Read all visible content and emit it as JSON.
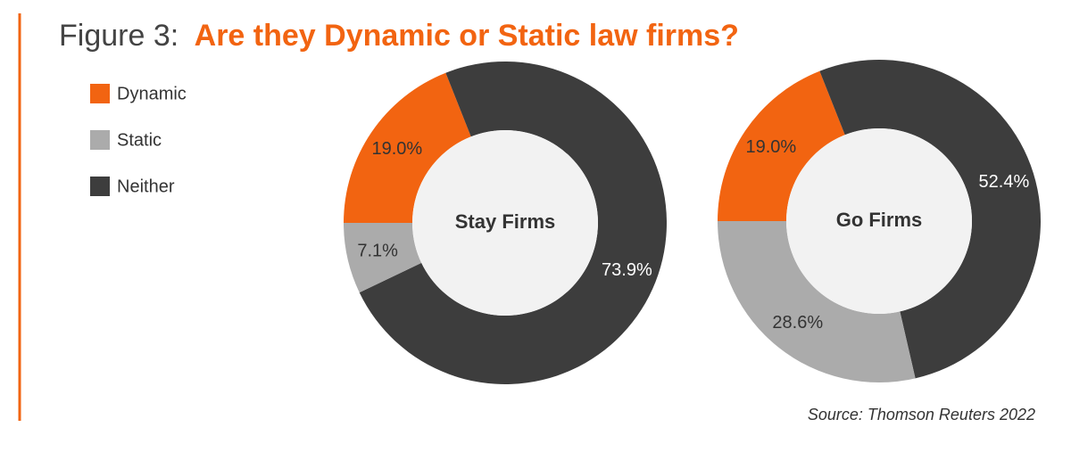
{
  "figure_label": "Figure 3:",
  "title": "Are they Dynamic or Static law firms?",
  "source": "Source: Thomson Reuters 2022",
  "legend": {
    "categories": [
      "Dynamic",
      "Static",
      "Neither"
    ],
    "colors": [
      "#f26411",
      "#ababab",
      "#3d3d3d"
    ]
  },
  "chart_data": [
    {
      "type": "pie",
      "title": "Stay Firms",
      "values": [
        19.0,
        7.1,
        73.9
      ],
      "value_labels": [
        "19.0%",
        "7.1%",
        "73.9%"
      ]
    },
    {
      "type": "pie",
      "title": "Go Firms",
      "values": [
        19.0,
        28.6,
        52.4
      ],
      "value_labels": [
        "19.0%",
        "28.6%",
        "52.4%"
      ]
    }
  ]
}
